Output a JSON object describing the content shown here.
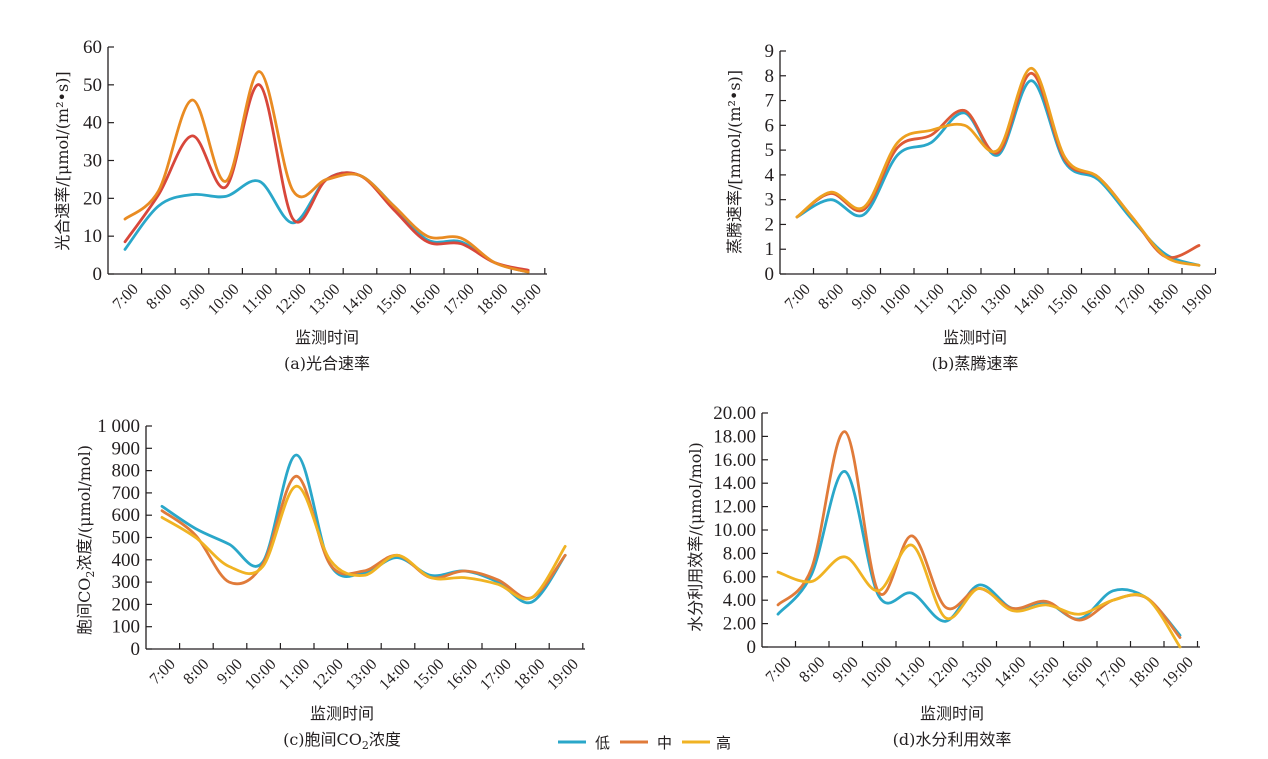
{
  "legend": {
    "items": [
      {
        "label": "低",
        "color": "#2aa7c9"
      },
      {
        "label": "中",
        "color": "#e07b3a"
      },
      {
        "label": "高",
        "color": "#f0b323"
      }
    ]
  },
  "chart_data": [
    {
      "id": "a",
      "type": "line",
      "caption": "(a)光合速率",
      "xlabel": "监测时间",
      "ylabel": "光合速率/[μmol/(m²•s)]",
      "categories": [
        "7:00",
        "8:00",
        "9:00",
        "10:00",
        "11:00",
        "12:00",
        "13:00",
        "14:00",
        "15:00",
        "16:00",
        "17:00",
        "18:00",
        "19:00"
      ],
      "ylim": [
        0,
        60
      ],
      "yticks": [
        0,
        10,
        20,
        30,
        40,
        50,
        60
      ],
      "ytick_labels": [
        "0",
        "10",
        "20",
        "30",
        "40",
        "50",
        "60"
      ],
      "grid": false,
      "series": [
        {
          "name": "低",
          "color": "#2aa7c9",
          "values": [
            6.5,
            18,
            21,
            20.5,
            24.5,
            13.5,
            25,
            26,
            18,
            9,
            8.5,
            3,
            0.5
          ]
        },
        {
          "name": "中",
          "color": "#d8473b",
          "values": [
            8.5,
            21,
            36.5,
            23,
            50,
            14.5,
            25,
            26,
            17,
            8.5,
            8,
            3,
            1
          ]
        },
        {
          "name": "高",
          "color": "#e98b22",
          "values": [
            14.5,
            22,
            46,
            24.5,
            53.5,
            22,
            25,
            26,
            18,
            10,
            9.5,
            3,
            0.5
          ]
        }
      ]
    },
    {
      "id": "b",
      "type": "line",
      "caption": "(b)蒸腾速率",
      "xlabel": "监测时间",
      "ylabel": "蒸腾速率/[mmol/(m²•s)]",
      "categories": [
        "7:00",
        "8:00",
        "9:00",
        "10:00",
        "11:00",
        "12:00",
        "13:00",
        "14:00",
        "15:00",
        "16:00",
        "17:00",
        "18:00",
        "19:00"
      ],
      "ylim": [
        0,
        9
      ],
      "yticks": [
        0,
        1,
        2,
        3,
        4,
        5,
        6,
        7,
        8,
        9
      ],
      "ytick_labels": [
        "0",
        "1",
        "2",
        "3",
        "4",
        "5",
        "6",
        "7",
        "8",
        "9"
      ],
      "grid": false,
      "series": [
        {
          "name": "低",
          "color": "#2aa7c9",
          "values": [
            2.3,
            3.0,
            2.4,
            4.8,
            5.3,
            6.5,
            4.8,
            7.8,
            4.5,
            3.8,
            2.2,
            0.8,
            0.35
          ]
        },
        {
          "name": "中",
          "color": "#dd5a36",
          "values": [
            2.3,
            3.25,
            2.6,
            5.1,
            5.6,
            6.6,
            4.9,
            8.1,
            4.6,
            3.9,
            2.3,
            0.7,
            1.15
          ]
        },
        {
          "name": "高",
          "color": "#eda020",
          "values": [
            2.3,
            3.3,
            2.7,
            5.3,
            5.8,
            6.0,
            5.0,
            8.3,
            4.7,
            3.9,
            2.3,
            0.7,
            0.35
          ]
        }
      ]
    },
    {
      "id": "c",
      "type": "line",
      "caption_main": "(c)胞间CO",
      "caption_sub": "2",
      "caption_tail": "浓度",
      "xlabel": "监测时间",
      "ylabel_main": "胞间CO",
      "ylabel_sub": "2",
      "ylabel_tail": "浓度/(μmol/mol)",
      "categories": [
        "7:00",
        "8:00",
        "9:00",
        "10:00",
        "11:00",
        "12:00",
        "13:00",
        "14:00",
        "15:00",
        "16:00",
        "17:00",
        "18:00",
        "19:00"
      ],
      "ylim": [
        0,
        1000
      ],
      "yticks": [
        0,
        100,
        200,
        300,
        400,
        500,
        600,
        700,
        800,
        900,
        1000
      ],
      "ytick_labels": [
        "0",
        "100",
        "200",
        "300",
        "400",
        "500",
        "600",
        "700",
        "800",
        "900",
        "1 000"
      ],
      "grid": false,
      "series": [
        {
          "name": "低",
          "color": "#2aa7c9",
          "values": [
            640,
            540,
            470,
            390,
            870,
            380,
            340,
            410,
            330,
            350,
            300,
            210,
            420
          ]
        },
        {
          "name": "中",
          "color": "#e07b3a",
          "values": [
            620,
            510,
            300,
            380,
            775,
            380,
            350,
            420,
            320,
            350,
            310,
            230,
            420
          ]
        },
        {
          "name": "高",
          "color": "#f0b323",
          "values": [
            590,
            500,
            370,
            370,
            730,
            400,
            330,
            420,
            320,
            320,
            290,
            230,
            460
          ]
        }
      ]
    },
    {
      "id": "d",
      "type": "line",
      "caption": "(d)水分利用效率",
      "xlabel": "监测时间",
      "ylabel": "水分利用效率/(μmol/mol)",
      "categories": [
        "7:00",
        "8:00",
        "9:00",
        "10:00",
        "11:00",
        "12:00",
        "13:00",
        "14:00",
        "15:00",
        "16:00",
        "17:00",
        "18:00",
        "19:00"
      ],
      "ylim": [
        0,
        20
      ],
      "yticks": [
        0,
        2,
        4,
        6,
        8,
        10,
        12,
        14,
        16,
        18,
        20
      ],
      "ytick_labels": [
        "0",
        "2.00",
        "4.00",
        "6.00",
        "8.00",
        "10.00",
        "12.00",
        "14.00",
        "16.00",
        "18.00",
        "20.00"
      ],
      "grid": false,
      "series": [
        {
          "name": "低",
          "color": "#2aa7c9",
          "values": [
            2.8,
            6.2,
            15.0,
            4.4,
            4.6,
            2.2,
            5.3,
            3.3,
            3.8,
            2.4,
            4.8,
            4.2,
            1.0
          ]
        },
        {
          "name": "中",
          "color": "#e07b3a",
          "values": [
            3.6,
            6.7,
            18.4,
            4.7,
            9.5,
            3.4,
            5.0,
            3.3,
            3.9,
            2.3,
            4.0,
            4.2,
            0.8
          ]
        },
        {
          "name": "高",
          "color": "#f0b323",
          "values": [
            6.4,
            5.6,
            7.7,
            4.8,
            8.7,
            2.5,
            5.0,
            3.1,
            3.6,
            2.8,
            4.0,
            4.2,
            0.0
          ]
        }
      ]
    }
  ]
}
